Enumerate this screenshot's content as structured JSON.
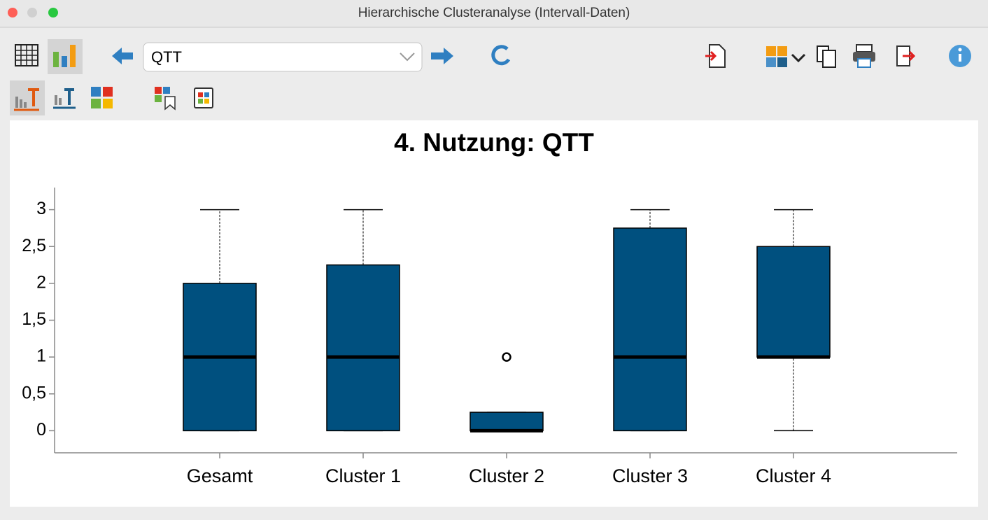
{
  "window": {
    "title": "Hierarchische Clusteranalyse (Intervall-Daten)"
  },
  "toolbar": {
    "selector": "QTT"
  },
  "chart_data": {
    "type": "box",
    "title": "4. Nutzung: QTT",
    "categories": [
      "Gesamt",
      "Cluster 1",
      "Cluster 2",
      "Cluster 3",
      "Cluster 4"
    ],
    "color": "#00507f",
    "min": [
      0,
      0,
      0,
      0,
      0
    ],
    "q1": [
      0,
      0,
      0,
      0,
      1
    ],
    "median": [
      1,
      1,
      0,
      1,
      1
    ],
    "q3": [
      2,
      2.25,
      0.25,
      2.75,
      2.5
    ],
    "max": [
      3,
      3,
      0.25,
      3,
      3
    ],
    "outliers": [
      [],
      [],
      [
        1
      ],
      [],
      []
    ],
    "ylim": [
      -0.3,
      3.3
    ],
    "yticks": [
      0,
      {
        "value": 0.5,
        "label": "0,5"
      },
      1,
      {
        "value": 1.5,
        "label": "1,5"
      },
      2,
      {
        "value": 2.5,
        "label": "2,5"
      },
      3
    ]
  }
}
